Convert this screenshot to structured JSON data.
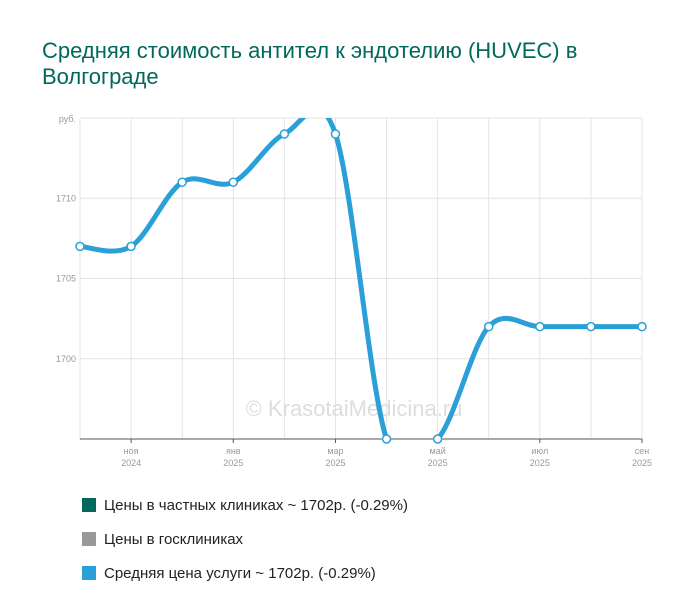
{
  "chart_data": {
    "type": "line",
    "title": "Средняя стоимость антител к эндотелию (HUVEC) в Волгограде",
    "ylabel": "руб.",
    "xlabel": "",
    "ylim": [
      1695,
      1715
    ],
    "y_ticks": [
      1700,
      1705,
      1710
    ],
    "x_labels": [
      {
        "pos": 1,
        "month": "ноя",
        "year": "2024"
      },
      {
        "pos": 3,
        "month": "янв",
        "year": "2025"
      },
      {
        "pos": 5,
        "month": "мар",
        "year": "2025"
      },
      {
        "pos": 7,
        "month": "май",
        "year": "2025"
      },
      {
        "pos": 9,
        "month": "июл",
        "year": "2025"
      },
      {
        "pos": 11,
        "month": "сен",
        "year": "2025"
      }
    ],
    "series": [
      {
        "name": "Средняя цена услуги ~ 1702р. (-0.29%)",
        "color": "#2a9fd8",
        "x": [
          0,
          1,
          2,
          3,
          4,
          5,
          6,
          7,
          8,
          9,
          10,
          11
        ],
        "y": [
          1707,
          1707,
          1711,
          1711,
          1714,
          1714,
          1695,
          1695,
          1702,
          1702,
          1702,
          1702
        ]
      }
    ],
    "grid": true,
    "legend_placement": "bottom"
  },
  "watermark": "© KrasotaiMedicina.ru",
  "legend": [
    {
      "label": "Цены в частных клиниках ~ 1702р. (-0.29%)",
      "color": "#00695c"
    },
    {
      "label": "Цены в госклиниках",
      "color": "#999999"
    },
    {
      "label": "Средняя цена услуги ~ 1702р. (-0.29%)",
      "color": "#2a9fd8"
    }
  ]
}
